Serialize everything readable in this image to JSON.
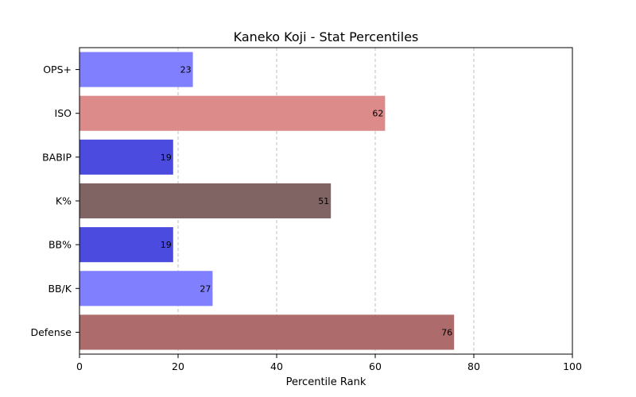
{
  "chart_data": {
    "type": "bar",
    "orientation": "horizontal",
    "title": "Kaneko Koji - Stat Percentiles",
    "xlabel": "Percentile Rank",
    "ylabel": "",
    "xlim": [
      0,
      100
    ],
    "xticks": [
      0,
      20,
      40,
      60,
      80,
      100
    ],
    "grid": "x",
    "categories": [
      "OPS+",
      "ISO",
      "BABIP",
      "K%",
      "BB%",
      "BB/K",
      "Defense"
    ],
    "values": [
      23,
      62,
      19,
      51,
      19,
      27,
      76
    ],
    "colors": [
      "#8080ff",
      "#dd8a8a",
      "#4b4bdf",
      "#806464",
      "#4b4bdf",
      "#8080ff",
      "#ad6b6b"
    ]
  }
}
